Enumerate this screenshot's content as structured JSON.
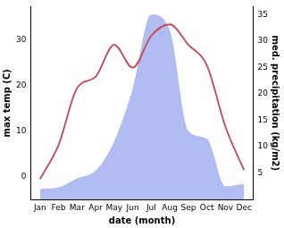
{
  "chart_data": {
    "type": "line",
    "x_label": "date (month)",
    "y_label": "max temp (C)",
    "y2_label": "med. precipitation (kg/m2)",
    "categories": [
      "Jan",
      "Feb",
      "Mar",
      "Apr",
      "May",
      "Jun",
      "Jul",
      "Aug",
      "Sep",
      "Oct",
      "Nov",
      "Dec"
    ],
    "ylim": [
      -5,
      37.4
    ],
    "yticks": [
      0,
      10,
      20,
      30
    ],
    "y2lim": [
      0,
      36.5
    ],
    "y2ticks": [
      5,
      10,
      15,
      20,
      25,
      30,
      35
    ],
    "grid": false,
    "series": [
      {
        "name": "max temp (C)",
        "type": "line",
        "color": "#c8474f",
        "values": [
          -0.5,
          7,
          19.5,
          22,
          29,
          24,
          31,
          33.5,
          29,
          24.5,
          11,
          1.5
        ]
      },
      {
        "name": "med. precipitation (kg/m2)",
        "type": "area",
        "axis": "y2",
        "color": "#b0bcf2",
        "values": [
          2,
          2.3,
          4,
          5.5,
          11,
          21,
          35,
          32,
          13,
          11.5,
          2.5,
          3
        ]
      }
    ]
  }
}
